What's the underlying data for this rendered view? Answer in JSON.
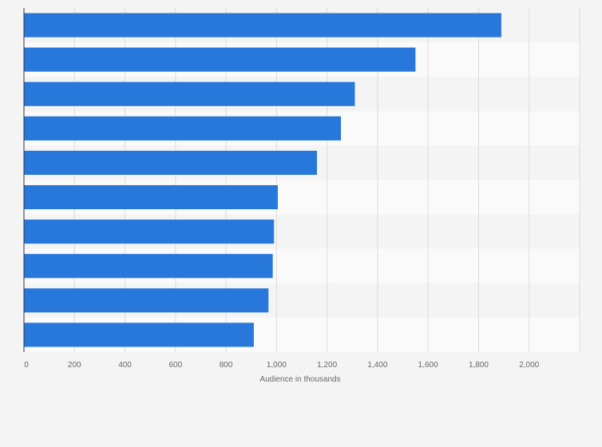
{
  "chart_data": {
    "type": "bar",
    "orientation": "horizontal",
    "title": "",
    "xlabel": "Audience in thousands",
    "ylabel": "",
    "categories": [
      "",
      "",
      "",
      "",
      "",
      "",
      "",
      "",
      "",
      ""
    ],
    "values": [
      1890,
      1550,
      1310,
      1255,
      1160,
      1005,
      990,
      985,
      968,
      910
    ],
    "xlim": [
      0,
      2200
    ],
    "xticks": [
      0,
      200,
      400,
      600,
      800,
      1000,
      1200,
      1400,
      1600,
      1800,
      2000
    ],
    "xtick_labels": [
      "0",
      "200",
      "400",
      "600",
      "800",
      "1,000",
      "1,200",
      "1,400",
      "1,600",
      "1,800",
      "2,000"
    ],
    "grid": true,
    "legend": "none",
    "bar_color": "#2878dc",
    "band_colors": [
      "#f4f4f4",
      "#fafafa"
    ]
  }
}
